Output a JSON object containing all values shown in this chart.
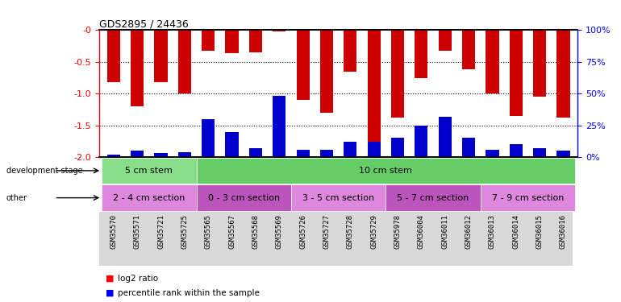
{
  "title": "GDS2895 / 24436",
  "samples": [
    "GSM35570",
    "GSM35571",
    "GSM35721",
    "GSM35725",
    "GSM35565",
    "GSM35567",
    "GSM35568",
    "GSM35569",
    "GSM35726",
    "GSM35727",
    "GSM35728",
    "GSM35729",
    "GSM35978",
    "GSM36004",
    "GSM36011",
    "GSM36012",
    "GSM36013",
    "GSM36014",
    "GSM36015",
    "GSM36016"
  ],
  "log2_ratio": [
    -0.82,
    -1.2,
    -0.82,
    -1.0,
    -0.32,
    -0.36,
    -0.35,
    -0.02,
    -1.1,
    -1.3,
    -0.65,
    -1.85,
    -1.38,
    -0.75,
    -0.32,
    -0.62,
    -1.0,
    -1.35,
    -1.05,
    -1.38
  ],
  "percentile": [
    2,
    5,
    3,
    4,
    30,
    20,
    7,
    48,
    6,
    6,
    12,
    12,
    15,
    25,
    32,
    15,
    6,
    10,
    7,
    5
  ],
  "ylim_left": [
    -2.0,
    0.0
  ],
  "ylim_right": [
    0,
    100
  ],
  "bar_color": "#cc0000",
  "blue_color": "#0000cc",
  "stage_groups": [
    {
      "label": "5 cm stem",
      "start": 0,
      "end": 4,
      "color": "#88dd88"
    },
    {
      "label": "10 cm stem",
      "start": 4,
      "end": 20,
      "color": "#66cc66"
    }
  ],
  "other_groups": [
    {
      "label": "2 - 4 cm section",
      "start": 0,
      "end": 4,
      "color": "#dd88dd"
    },
    {
      "label": "0 - 3 cm section",
      "start": 4,
      "end": 8,
      "color": "#bb55bb"
    },
    {
      "label": "3 - 5 cm section",
      "start": 8,
      "end": 12,
      "color": "#dd88dd"
    },
    {
      "label": "5 - 7 cm section",
      "start": 12,
      "end": 16,
      "color": "#bb55bb"
    },
    {
      "label": "7 - 9 cm section",
      "start": 16,
      "end": 20,
      "color": "#dd88dd"
    }
  ],
  "tick_left": [
    -2.0,
    -1.5,
    -1.0,
    -0.5,
    0.0
  ],
  "tick_right": [
    0,
    25,
    50,
    75,
    100
  ],
  "bar_width": 0.55
}
